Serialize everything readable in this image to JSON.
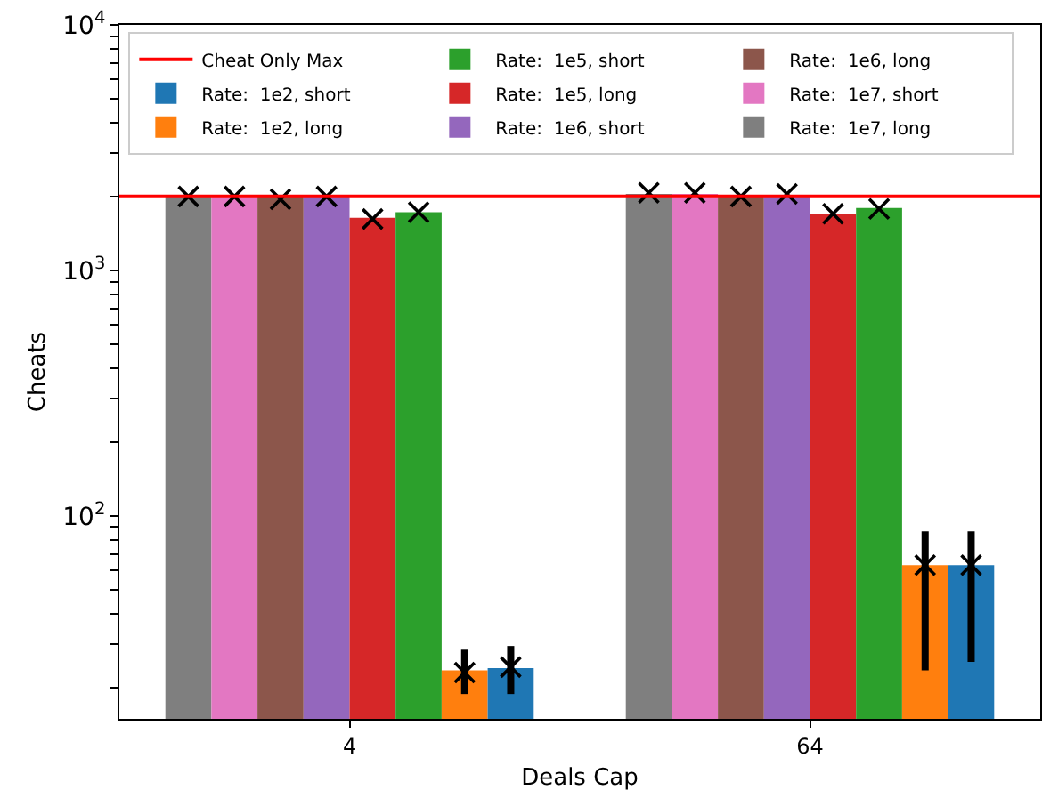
{
  "chart_data": {
    "type": "bar",
    "xlabel": "Deals Cap",
    "ylabel": "Cheats",
    "categories": [
      "4",
      "64"
    ],
    "log": "y",
    "grid": false,
    "legend": "top left",
    "ylim": [
      14.9,
      10000
    ],
    "yticks": [
      {
        "value": 20,
        "label": null
      },
      {
        "value": 30,
        "label": null
      },
      {
        "value": 40,
        "label": null
      },
      {
        "value": 50,
        "label": null
      },
      {
        "value": 60,
        "label": null
      },
      {
        "value": 70,
        "label": null
      },
      {
        "value": 80,
        "label": null
      },
      {
        "value": 90,
        "label": null
      },
      {
        "value": 100,
        "label": "10$^{2}$"
      },
      {
        "value": 200,
        "label": null
      },
      {
        "value": 300,
        "label": null
      },
      {
        "value": 400,
        "label": null
      },
      {
        "value": 500,
        "label": null
      },
      {
        "value": 600,
        "label": null
      },
      {
        "value": 700,
        "label": null
      },
      {
        "value": 800,
        "label": null
      },
      {
        "value": 900,
        "label": null
      },
      {
        "value": 1000,
        "label": "10$^{3}$"
      },
      {
        "value": 2000,
        "label": null
      },
      {
        "value": 3000,
        "label": null
      },
      {
        "value": 4000,
        "label": null
      },
      {
        "value": 5000,
        "label": null
      },
      {
        "value": 6000,
        "label": null
      },
      {
        "value": 7000,
        "label": null
      },
      {
        "value": 8000,
        "label": null
      },
      {
        "value": 9000,
        "label": null
      },
      {
        "value": 10000,
        "label": "10$^{4}$"
      }
    ],
    "ref_lines": [
      {
        "axis": "y",
        "value": 2000,
        "label": "Cheat Only Max",
        "color": "#ff0000",
        "line_style": "solid"
      }
    ],
    "series": [
      {
        "name": "Rate:  1e7, long",
        "color": "#7f7f7f",
        "values": [
          2000,
          2050
        ]
      },
      {
        "name": "Rate:  1e7, short",
        "color": "#e377c2",
        "values": [
          2000,
          2050
        ]
      },
      {
        "name": "Rate:  1e6, long",
        "color": "#8c564b",
        "values": [
          2000,
          2000
        ]
      },
      {
        "name": "Rate:  1e6, short",
        "color": "#9467bd",
        "values": [
          2000,
          2000
        ]
      },
      {
        "name": "Rate:  1e5, long",
        "color": "#d62728",
        "values": [
          1640,
          1700
        ]
      },
      {
        "name": "Rate:  1e5, short",
        "color": "#2ca02c",
        "values": [
          1725,
          1795
        ]
      },
      {
        "name": "Rate:  1e2, long",
        "color": "#ff7f0e",
        "values": [
          23.5,
          63
        ]
      },
      {
        "name": "Rate:  1e2, short",
        "color": "#1f77b4",
        "values": [
          24,
          63
        ]
      },
      {
        "type": "scatter",
        "marker": "cross",
        "color": "#000000",
        "x": [
          "4",
          "64"
        ],
        "values": [
          2000,
          2070
        ]
      },
      {
        "type": "scatter",
        "marker": "cross",
        "color": "#000000",
        "x": [
          "4",
          "64"
        ],
        "values": [
          2000,
          2070
        ]
      },
      {
        "type": "scatter",
        "marker": "cross",
        "color": "#000000",
        "x": [
          "4",
          "64"
        ],
        "values": [
          1950,
          2000
        ]
      },
      {
        "type": "scatter",
        "marker": "cross",
        "color": "#000000",
        "x": [
          "4",
          "64"
        ],
        "values": [
          2000,
          2050
        ]
      },
      {
        "type": "scatter",
        "marker": "cross",
        "color": "#000000",
        "x": [
          "4",
          "64"
        ],
        "values": [
          1620,
          1700
        ]
      },
      {
        "type": "scatter",
        "marker": "cross",
        "color": "#000000",
        "x": [
          "4",
          "64"
        ],
        "values": [
          1725,
          1780
        ]
      },
      {
        "type": "scatter",
        "marker": "cross",
        "color": "#000000",
        "x": [
          "4",
          "64"
        ],
        "values": [
          23,
          63
        ],
        "errors": [
          [
            18.8,
            28.5
          ],
          [
            23.5,
            86.5
          ]
        ]
      },
      {
        "type": "scatter",
        "marker": "cross",
        "color": "#000000",
        "x": [
          "4",
          "64"
        ],
        "values": [
          24.2,
          63
        ],
        "errors": [
          [
            18.8,
            29.5
          ],
          [
            25.4,
            86.5
          ]
        ]
      }
    ]
  }
}
